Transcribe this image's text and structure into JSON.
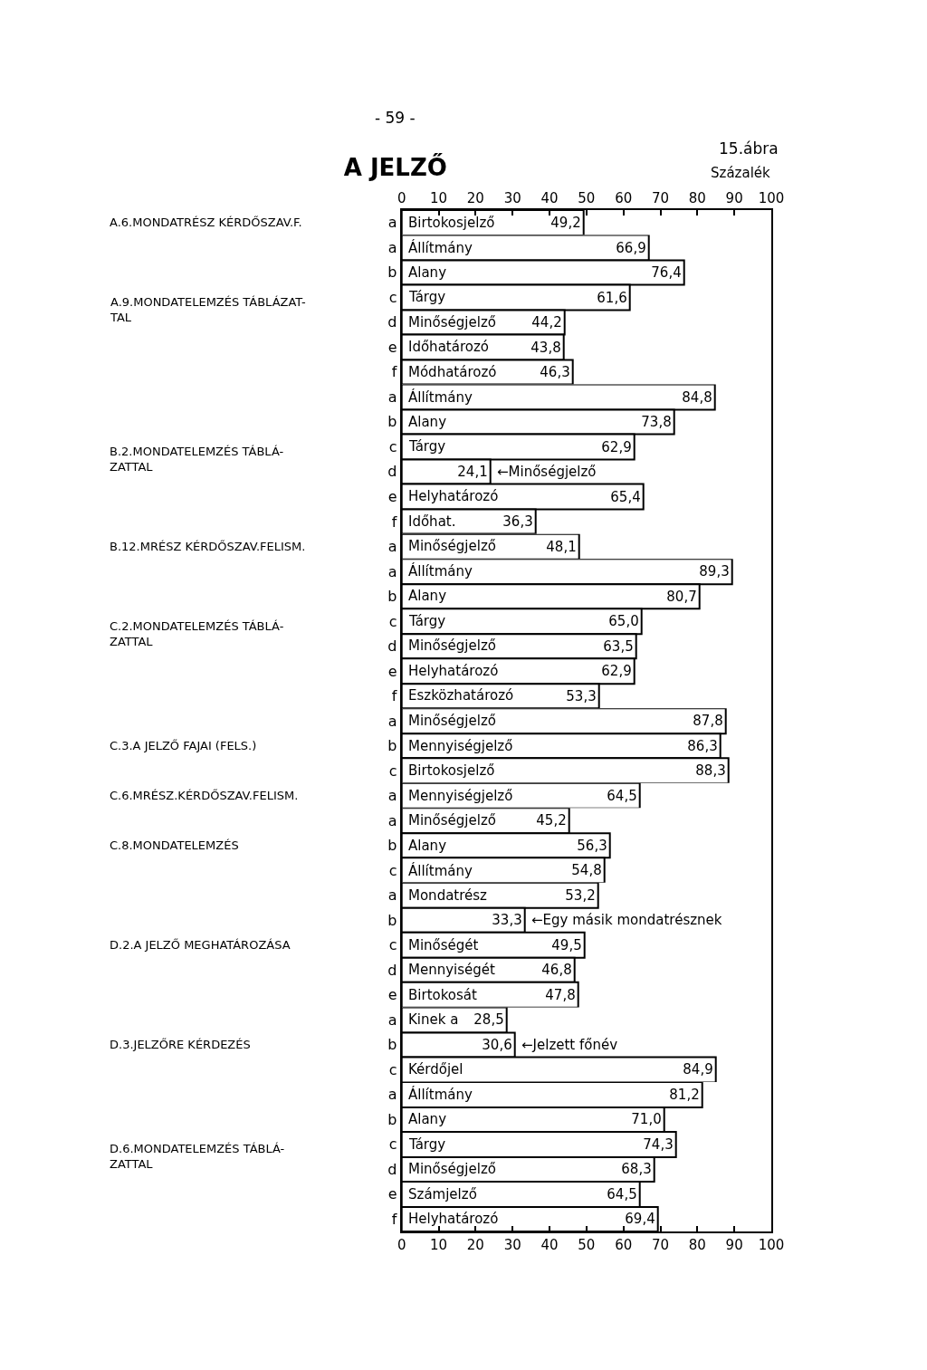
{
  "chart_data": [
    {
      "type": "bar",
      "orientation": "horizontal",
      "title": "A JELZŐ",
      "xlabel": "Százalék",
      "ylabel": "A.6.MONDATRÉSZ KÉRDŐSZAV.F.",
      "categories": [
        "a"
      ],
      "values": [
        49.2
      ],
      "value_labels": [
        "49,2"
      ],
      "color": "#ffffff",
      "xlim": [
        0,
        100
      ],
      "xticks": [
        0,
        10,
        20,
        30,
        40,
        50,
        60,
        70,
        80,
        90,
        100
      ],
      "annotations": [
        "- 59 -",
        "15.ábra",
        {
          "text": "Birtokosjelző",
          "x": 0,
          "y": "a"
        }
      ]
    },
    {
      "type": "bar",
      "orientation": "horizontal",
      "ylabel": "A.9.MONDATELEMZÉS TÁBLÁZAT-\nTAL",
      "categories": [
        "a",
        "b",
        "c",
        "d",
        "e",
        "f"
      ],
      "values": [
        66.9,
        76.4,
        61.6,
        44.2,
        43.8,
        46.3
      ],
      "value_labels": [
        "66,9",
        "76,4",
        "61,6",
        "44,2",
        "43,8",
        "46,3"
      ],
      "color": "#ffffff",
      "xlim": [
        0,
        100
      ],
      "tick_labels": "y",
      "annotations": [
        {
          "text": "Állítmány",
          "x": 0,
          "y": "a"
        },
        {
          "text": "Alany",
          "x": 0,
          "y": "b"
        },
        {
          "text": "Tárgy",
          "x": 0,
          "y": "c"
        },
        {
          "text": "Minőségjelző",
          "x": 0,
          "y": "d"
        },
        {
          "text": "Időhatározó",
          "x": 0,
          "y": "e"
        },
        {
          "text": "Módhatározó",
          "x": 0,
          "y": "f"
        }
      ]
    },
    {
      "type": "bar",
      "orientation": "horizontal",
      "ylabel": "B.2.MONDATELEMZÉS TÁBLÁ-\nZATTAL",
      "categories": [
        "a",
        "b",
        "c",
        "d",
        "e",
        "f"
      ],
      "values": [
        84.8,
        73.8,
        62.9,
        24.1,
        65.4,
        36.3
      ],
      "value_labels": [
        "84,8",
        "73,8",
        "62,9",
        "24,1",
        "65,4",
        "36,3"
      ],
      "color": "#ffffff",
      "xlim": [
        0,
        100
      ],
      "tick_labels": "y",
      "annotations": [
        {
          "text": "Állítmány",
          "x": 0,
          "y": "a"
        },
        {
          "text": "Alany",
          "x": 0,
          "y": "b"
        },
        {
          "text": "Tárgy",
          "x": 0,
          "y": "c"
        },
        {
          "text": "←Minőségjelző",
          "x": 24.1,
          "y": "d"
        },
        {
          "text": "Helyhatározó",
          "x": 0,
          "y": "e"
        },
        {
          "text": "Időhat.",
          "x": 0,
          "y": "f"
        }
      ]
    },
    {
      "type": "bar",
      "orientation": "horizontal",
      "ylabel": "B.12.MRÉSZ KÉRDŐSZAV.FELISM.",
      "categories": [
        "a"
      ],
      "values": [
        48.1
      ],
      "value_labels": [
        "48,1"
      ],
      "color": "#ffffff",
      "xlim": [
        0,
        100
      ],
      "tick_labels": "y",
      "annotations": [
        {
          "text": "Minőségjelző",
          "x": 0,
          "y": "a"
        }
      ]
    },
    {
      "type": "bar",
      "orientation": "horizontal",
      "ylabel": "C.2.MONDATELEMZÉS TÁBLÁ-\nZATTAL",
      "categories": [
        "a",
        "b",
        "c",
        "d",
        "e",
        "f"
      ],
      "values": [
        89.3,
        80.7,
        65.0,
        63.5,
        62.9,
        53.3
      ],
      "value_labels": [
        "89,3",
        "80,7",
        "65,0",
        "63,5",
        "62,9",
        "53,3"
      ],
      "color": "#ffffff",
      "xlim": [
        0,
        100
      ],
      "tick_labels": "y",
      "annotations": [
        {
          "text": "Állítmány",
          "x": 0,
          "y": "a"
        },
        {
          "text": "Alany",
          "x": 0,
          "y": "b"
        },
        {
          "text": "Tárgy",
          "x": 0,
          "y": "c"
        },
        {
          "text": "Minőségjelző",
          "x": 0,
          "y": "d"
        },
        {
          "text": "Helyhatározó",
          "x": 0,
          "y": "e"
        },
        {
          "text": "Eszközhatározó",
          "x": 0,
          "y": "f"
        }
      ]
    },
    {
      "type": "bar",
      "orientation": "horizontal",
      "ylabel": "C.3.A JELZŐ FAJAI (FELS.)",
      "categories": [
        "a",
        "b",
        "c"
      ],
      "values": [
        87.8,
        86.3,
        88.3
      ],
      "value_labels": [
        "87,8",
        "86,3",
        "88,3"
      ],
      "color": "#ffffff",
      "xlim": [
        0,
        100
      ],
      "tick_labels": "y",
      "annotations": [
        {
          "text": "Minőségjelző",
          "x": 0,
          "y": "a"
        },
        {
          "text": "Mennyiségjelző",
          "x": 0,
          "y": "b"
        },
        {
          "text": "Birtokosjelző",
          "x": 0,
          "y": "c"
        }
      ]
    },
    {
      "type": "bar",
      "orientation": "horizontal",
      "ylabel": "C.6.MRÉSZ.KÉRDŐSZAV.FELISM.",
      "categories": [
        "a"
      ],
      "values": [
        64.5
      ],
      "value_labels": [
        "64,5"
      ],
      "color": "#ffffff",
      "xlim": [
        0,
        100
      ],
      "tick_labels": "y",
      "annotations": [
        {
          "text": "Mennyiségjelző",
          "x": 0,
          "y": "a"
        }
      ]
    },
    {
      "type": "bar",
      "orientation": "horizontal",
      "ylabel": "C.8.MONDATELEMZÉS",
      "categories": [
        "a",
        "b",
        "c"
      ],
      "values": [
        45.2,
        56.3,
        54.8
      ],
      "value_labels": [
        "45,2",
        "56,3",
        "54,8"
      ],
      "color": "#ffffff",
      "xlim": [
        0,
        100
      ],
      "tick_labels": "y",
      "annotations": [
        {
          "text": "Minőségjelző",
          "x": 0,
          "y": "a"
        },
        {
          "text": "Alany",
          "x": 0,
          "y": "b"
        },
        {
          "text": "Állítmány",
          "x": 0,
          "y": "c"
        }
      ]
    },
    {
      "type": "bar",
      "orientation": "horizontal",
      "ylabel": "D.2.A JELZŐ MEGHATÁROZÁSA",
      "categories": [
        "a",
        "b",
        "c",
        "d",
        "e"
      ],
      "values": [
        53.2,
        33.3,
        49.5,
        46.8,
        47.8
      ],
      "value_labels": [
        "53,2",
        "33,3",
        "49,5",
        "46,8",
        "47,8"
      ],
      "color": "#ffffff",
      "xlim": [
        0,
        100
      ],
      "tick_labels": "y",
      "annotations": [
        {
          "text": "Mondatrész",
          "x": 0,
          "y": "a"
        },
        {
          "text": "←Egy másik mondatrésznek",
          "x": 33.3,
          "y": "b"
        },
        {
          "text": "Minőségét",
          "x": 0,
          "y": "c"
        },
        {
          "text": "Mennyiségét",
          "x": 0,
          "y": "d"
        },
        {
          "text": "Birtokosát",
          "x": 0,
          "y": "e"
        }
      ]
    },
    {
      "type": "bar",
      "orientation": "horizontal",
      "ylabel": "D.3.JELZŐRE KÉRDEZÉS",
      "categories": [
        "a",
        "b",
        "c"
      ],
      "values": [
        28.5,
        30.6,
        84.9
      ],
      "value_labels": [
        "28,5",
        "30,6",
        "84,9"
      ],
      "color": "#ffffff",
      "xlim": [
        0,
        100
      ],
      "tick_labels": "y",
      "annotations": [
        {
          "text": "Kinek a",
          "x": 0,
          "y": "a"
        },
        {
          "text": "←Jelzett főnév",
          "x": 30.6,
          "y": "b"
        },
        {
          "text": "Kérdőjel",
          "x": 0,
          "y": "c"
        }
      ]
    },
    {
      "type": "bar",
      "orientation": "horizontal",
      "ylabel": "D.6.MONDATELEMZÉS TÁBLÁ-\nZATTAL",
      "categories": [
        "a",
        "b",
        "c",
        "d",
        "e",
        "f"
      ],
      "values": [
        81.2,
        71.0,
        74.3,
        68.3,
        64.5,
        69.4
      ],
      "value_labels": [
        "81,2",
        "71,0",
        "74,3",
        "68,3",
        "64,5",
        "69,4"
      ],
      "color": "#ffffff",
      "xlim": [
        0,
        100
      ],
      "xticks": [
        0,
        10,
        20,
        30,
        40,
        50,
        60,
        70,
        80,
        90,
        100
      ],
      "annotations": [
        {
          "text": "Állítmány",
          "x": 0,
          "y": "a"
        },
        {
          "text": "Alany",
          "x": 0,
          "y": "b"
        },
        {
          "text": "Tárgy",
          "x": 0,
          "y": "c"
        },
        {
          "text": "Minőségjelző",
          "x": 0,
          "y": "d"
        },
        {
          "text": "Számjelző",
          "x": 0,
          "y": "e"
        },
        {
          "text": "Helyhatározó",
          "x": 0,
          "y": "f"
        }
      ]
    }
  ]
}
